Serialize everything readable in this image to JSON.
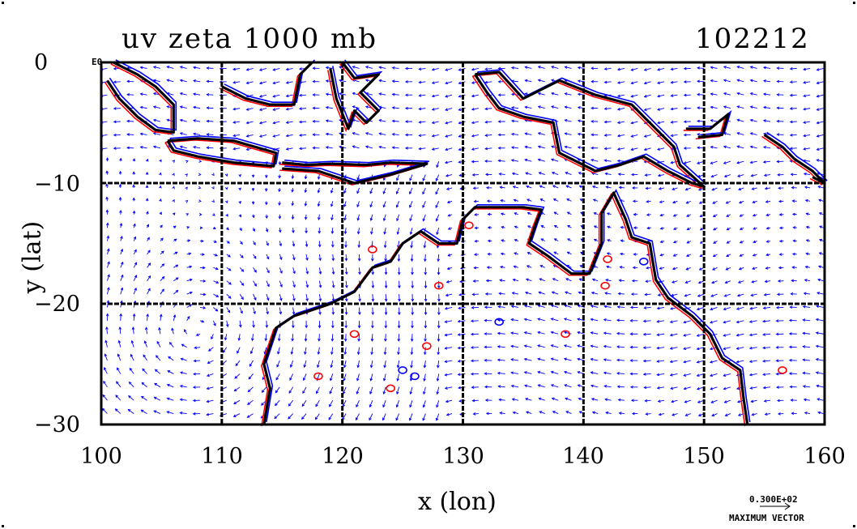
{
  "title": {
    "left": "uv zeta 1000 mb",
    "right": "102212"
  },
  "axes": {
    "xlabel": "x (lon)",
    "ylabel": "y (lat)",
    "xlim": [
      100,
      160
    ],
    "ylim": [
      -30,
      0
    ],
    "xticks": [
      "100",
      "110",
      "120",
      "130",
      "140",
      "150",
      "160"
    ],
    "yticks": [
      "0",
      "−10",
      "−20",
      "−30"
    ],
    "exponent_label": "E0"
  },
  "reference_vector": {
    "value": "0.300E+02",
    "label": "MAXIMUM VECTOR"
  },
  "colors": {
    "coastline": "#000000",
    "vectors": "#0000ff",
    "vorticity_positive": "#ff0000",
    "vorticity_negative": "#0000ff",
    "grid": "#000000"
  },
  "map": {
    "type": "vector-field with vorticity contours",
    "grid": true,
    "grid_lon": [
      110,
      120,
      130,
      140,
      150
    ],
    "grid_lat": [
      -10,
      -20
    ]
  }
}
